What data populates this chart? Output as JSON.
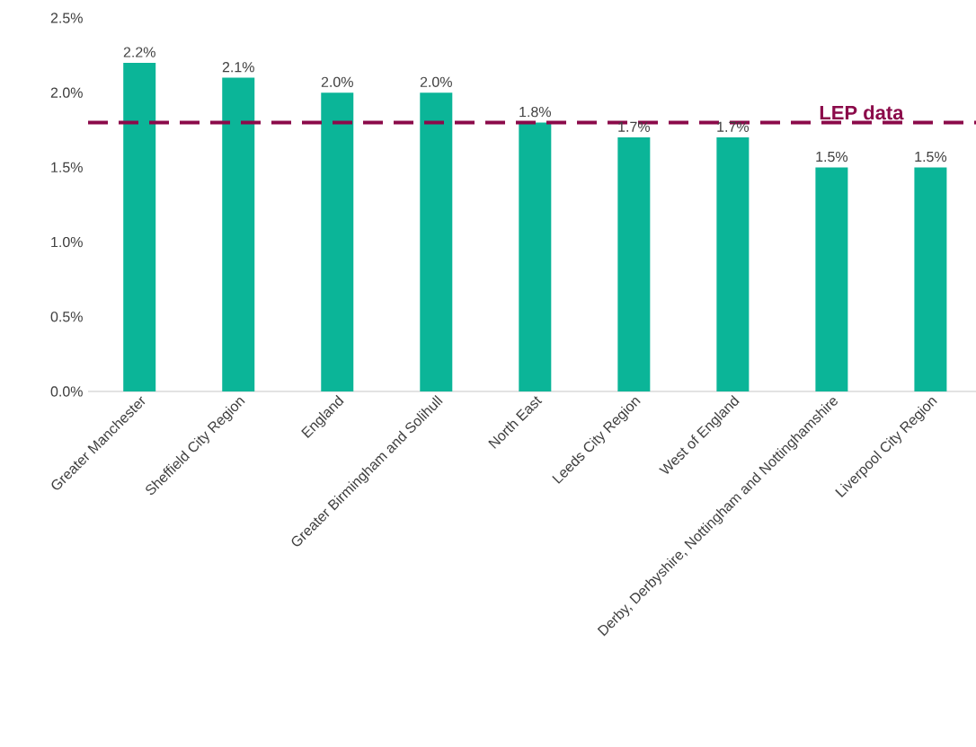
{
  "chart_data": {
    "type": "bar",
    "categories": [
      "Greater Manchester",
      "Sheffield City Region",
      "England",
      "Greater Birmingham and Solihull",
      "North East",
      "Leeds City Region",
      "West of England",
      "Derby, Derbyshire, Nottingham and Nottinghamshire",
      "Liverpool City Region"
    ],
    "values": [
      2.2,
      2.1,
      2.0,
      2.0,
      1.8,
      1.7,
      1.7,
      1.5,
      1.5
    ],
    "value_labels": [
      "2.2%",
      "2.1%",
      "2.0%",
      "2.0%",
      "1.8%",
      "1.7%",
      "1.7%",
      "1.5%",
      "1.5%"
    ],
    "color": "#0bb598",
    "ylim": [
      0,
      2.5
    ],
    "yticks": [
      {
        "value": 0,
        "label": "0.0%"
      },
      {
        "value": 0.5,
        "label": "0.5%"
      },
      {
        "value": 1.0,
        "label": "1.0%"
      },
      {
        "value": 1.5,
        "label": "1.5%"
      },
      {
        "value": 2.0,
        "label": "2.0%"
      },
      {
        "value": 2.5,
        "label": "2.5%"
      }
    ],
    "ref_lines": [
      {
        "axis": "y",
        "value": 1.8,
        "label": "LEP data",
        "color": "#8b0a4a",
        "line_style": "dashed"
      }
    ],
    "grid": false
  }
}
